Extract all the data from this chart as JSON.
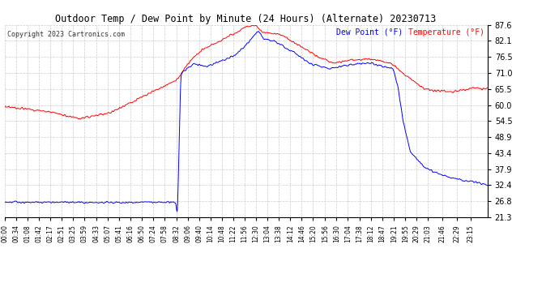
{
  "title": "Outdoor Temp / Dew Point by Minute (24 Hours) (Alternate) 20230713",
  "copyright": "Copyright 2023 Cartronics.com",
  "legend_dew": "Dew Point (°F)",
  "legend_temp": "Temperature (°F)",
  "temp_color": "#ff0000",
  "dew_color": "#0000ff",
  "background_color": "#ffffff",
  "grid_color": "#cccccc",
  "yticks": [
    21.3,
    26.8,
    32.4,
    37.9,
    43.4,
    48.9,
    54.5,
    60.0,
    65.5,
    71.0,
    76.5,
    82.1,
    87.6
  ],
  "ymin": 21.3,
  "ymax": 87.6,
  "total_minutes": 1440,
  "xtick_labels": [
    "00:00",
    "00:34",
    "01:08",
    "01:42",
    "02:17",
    "02:51",
    "03:25",
    "03:59",
    "04:33",
    "05:07",
    "05:41",
    "06:16",
    "06:50",
    "07:24",
    "07:58",
    "08:32",
    "09:06",
    "09:40",
    "10:14",
    "10:48",
    "11:22",
    "11:56",
    "12:30",
    "13:04",
    "13:38",
    "14:12",
    "14:46",
    "15:20",
    "15:56",
    "16:30",
    "17:04",
    "17:38",
    "18:12",
    "18:47",
    "19:21",
    "19:55",
    "20:29",
    "21:03",
    "21:46",
    "22:29",
    "23:15"
  ],
  "xtick_positions_ratio": [
    0.0,
    0.0236,
    0.0472,
    0.0708,
    0.0951,
    0.1181,
    0.1424,
    0.166,
    0.1896,
    0.2132,
    0.2368,
    0.2611,
    0.2847,
    0.3083,
    0.3319,
    0.3556,
    0.3792,
    0.4028,
    0.4264,
    0.45,
    0.4736,
    0.4972,
    0.5208,
    0.5444,
    0.5681,
    0.5917,
    0.6153,
    0.6389,
    0.6639,
    0.6875,
    0.7111,
    0.7347,
    0.7583,
    0.7826,
    0.8063,
    0.8299,
    0.8535,
    0.8771,
    0.9069,
    0.9368,
    0.9653
  ],
  "temp_data_x": [
    0.0,
    0.02,
    0.1,
    0.155,
    0.175,
    0.22,
    0.355,
    0.365,
    0.385,
    0.41,
    0.44,
    0.48,
    0.5,
    0.52,
    0.535,
    0.57,
    0.615,
    0.65,
    0.68,
    0.72,
    0.755,
    0.8,
    0.825,
    0.87,
    0.93,
    0.97,
    1.0
  ],
  "temp_data_y": [
    59.5,
    59.2,
    57.5,
    55.2,
    55.8,
    57.5,
    68.5,
    70.5,
    75.5,
    79.0,
    81.5,
    85.0,
    87.0,
    87.5,
    85.0,
    84.5,
    80.0,
    76.5,
    74.5,
    75.5,
    76.0,
    74.5,
    71.0,
    65.5,
    64.5,
    66.0,
    65.5
  ],
  "dew_data_x": [
    0.0,
    0.355,
    0.358,
    0.365,
    0.39,
    0.42,
    0.455,
    0.48,
    0.505,
    0.525,
    0.535,
    0.56,
    0.6,
    0.63,
    0.67,
    0.72,
    0.755,
    0.805,
    0.815,
    0.825,
    0.84,
    0.87,
    0.92,
    0.97,
    1.0
  ],
  "dew_data_y": [
    26.5,
    26.5,
    20.5,
    71.0,
    74.0,
    73.5,
    75.5,
    77.5,
    81.5,
    85.5,
    83.0,
    82.0,
    78.0,
    74.5,
    72.5,
    74.0,
    74.5,
    72.5,
    66.0,
    55.0,
    44.0,
    38.5,
    35.0,
    33.5,
    32.5
  ]
}
